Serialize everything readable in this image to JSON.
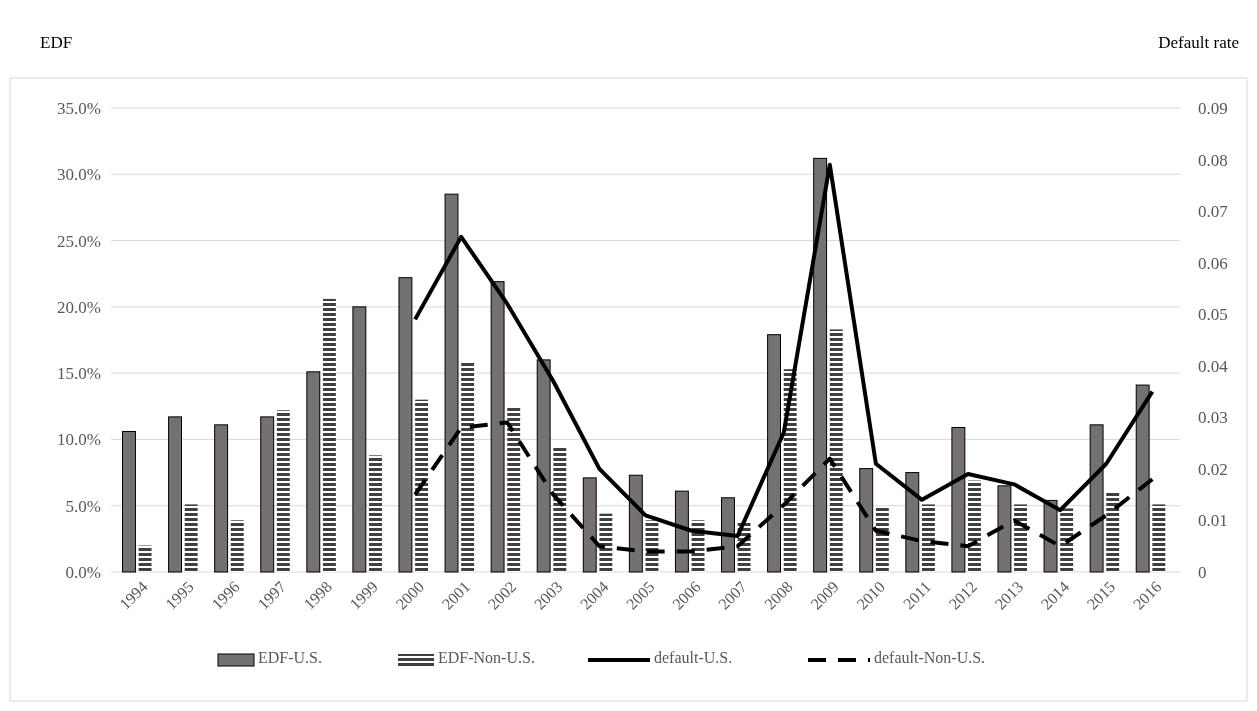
{
  "chart_data": {
    "type": "bar",
    "ylabel": "EDF",
    "y2label": "Default rate",
    "categories": [
      "1994",
      "1995",
      "1996",
      "1997",
      "1998",
      "1999",
      "2000",
      "2001",
      "2002",
      "2003",
      "2004",
      "2005",
      "2006",
      "2007",
      "2008",
      "2009",
      "2010",
      "2011",
      "2012",
      "2013",
      "2014",
      "2015",
      "2016"
    ],
    "series": [
      {
        "name": "EDF-U.S.",
        "color": "#767171",
        "values": [
          10.6,
          11.7,
          11.1,
          11.7,
          15.1,
          20.0,
          22.2,
          28.5,
          21.9,
          16.0,
          7.1,
          7.3,
          6.1,
          5.6,
          17.9,
          31.2,
          7.8,
          7.5,
          10.9,
          6.5,
          5.4,
          11.1,
          14.1
        ]
      },
      {
        "name": "EDF-Non-U.S.",
        "color": "#404040",
        "values": [
          2.0,
          5.1,
          3.9,
          12.2,
          20.6,
          8.8,
          13.0,
          15.8,
          12.4,
          9.4,
          4.4,
          3.9,
          3.9,
          3.8,
          15.3,
          18.3,
          4.9,
          5.1,
          6.9,
          5.1,
          4.8,
          6.1,
          5.1
        ]
      },
      {
        "name": "default-U.S.",
        "type": "line",
        "axis": "y2",
        "color": "#000000",
        "line_style": "solid",
        "values": [
          null,
          null,
          null,
          null,
          null,
          null,
          0.049,
          0.065,
          0.052,
          0.037,
          0.02,
          0.011,
          0.008,
          0.007,
          0.027,
          0.079,
          0.021,
          0.014,
          0.019,
          0.017,
          0.012,
          0.021,
          0.035
        ]
      },
      {
        "name": "default-Non-U.S.",
        "type": "line",
        "axis": "y2",
        "color": "#000000",
        "line_style": "dashed",
        "values": [
          null,
          null,
          null,
          null,
          null,
          null,
          0.015,
          0.028,
          0.029,
          0.015,
          0.005,
          0.004,
          0.004,
          0.005,
          0.013,
          0.022,
          0.008,
          0.006,
          0.005,
          0.01,
          0.005,
          0.011,
          0.018
        ]
      }
    ],
    "ylim": [
      0,
      35
    ],
    "yticks": [
      {
        "value": 0,
        "label": "0.0%"
      },
      {
        "value": 5,
        "label": "5.0%"
      },
      {
        "value": 10,
        "label": "10.0%"
      },
      {
        "value": 15,
        "label": "15.0%"
      },
      {
        "value": 20,
        "label": "20.0%"
      },
      {
        "value": 25,
        "label": "25.0%"
      },
      {
        "value": 30,
        "label": "30.0%"
      },
      {
        "value": 35,
        "label": "35.0%"
      }
    ],
    "y2lim": [
      0,
      0.09
    ],
    "y2ticks": [
      0,
      0.01,
      0.02,
      0.03,
      0.04,
      0.05,
      0.06,
      0.07,
      0.08,
      0.09
    ],
    "grid": "y",
    "legend": "bottom"
  }
}
